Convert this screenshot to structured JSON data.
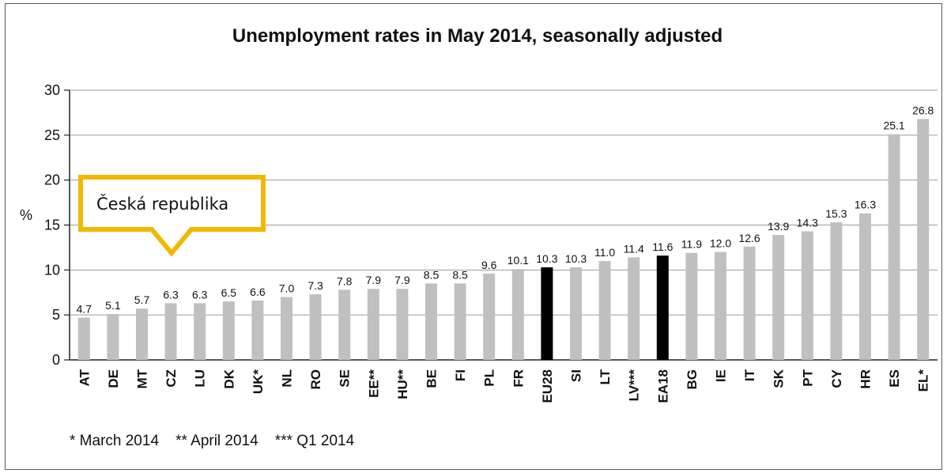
{
  "chart_data": {
    "type": "bar",
    "title": "Unemployment rates in May 2014, seasonally adjusted",
    "ylabel": "%",
    "ylim": [
      0,
      30
    ],
    "yticks": [
      0,
      5,
      10,
      15,
      20,
      25,
      30
    ],
    "categories": [
      "AT",
      "DE",
      "MT",
      "CZ",
      "LU",
      "DK",
      "UK*",
      "NL",
      "RO",
      "SE",
      "EE**",
      "HU**",
      "BE",
      "FI",
      "PL",
      "FR",
      "EU28",
      "SI",
      "LT",
      "LV***",
      "EA18",
      "BG",
      "IE",
      "IT",
      "SK",
      "PT",
      "CY",
      "HR",
      "ES",
      "EL*"
    ],
    "values": [
      4.7,
      5.1,
      5.7,
      6.3,
      6.3,
      6.5,
      6.6,
      7.0,
      7.3,
      7.8,
      7.9,
      7.9,
      8.5,
      8.5,
      9.6,
      10.1,
      10.3,
      10.3,
      11.0,
      11.4,
      11.6,
      11.9,
      12.0,
      12.6,
      13.9,
      14.3,
      15.3,
      16.3,
      25.1,
      26.8
    ],
    "value_labels": [
      "4.7",
      "5.1",
      "5.7",
      "6.3",
      "6.3",
      "6.5",
      "6.6",
      "7.0",
      "7.3",
      "7.8",
      "7.9",
      "7.9",
      "8.5",
      "8.5",
      "9.6",
      "10.1",
      "10.3",
      "10.3",
      "11.0",
      "11.4",
      "11.6",
      "11.9",
      "12.0",
      "12.6",
      "13.9",
      "14.3",
      "15.3",
      "16.3",
      "25.1",
      "26.8"
    ],
    "highlighted": [
      "EU28",
      "EA18"
    ],
    "colors": {
      "bar": "#c0c0c0",
      "highlight": "#000000",
      "callout": "#f2b700"
    },
    "grid": "horizontal",
    "footnote": "* March 2014    ** April 2014    *** Q1 2014"
  },
  "annotation": {
    "label": "Česká republika",
    "target_category": "CZ"
  }
}
